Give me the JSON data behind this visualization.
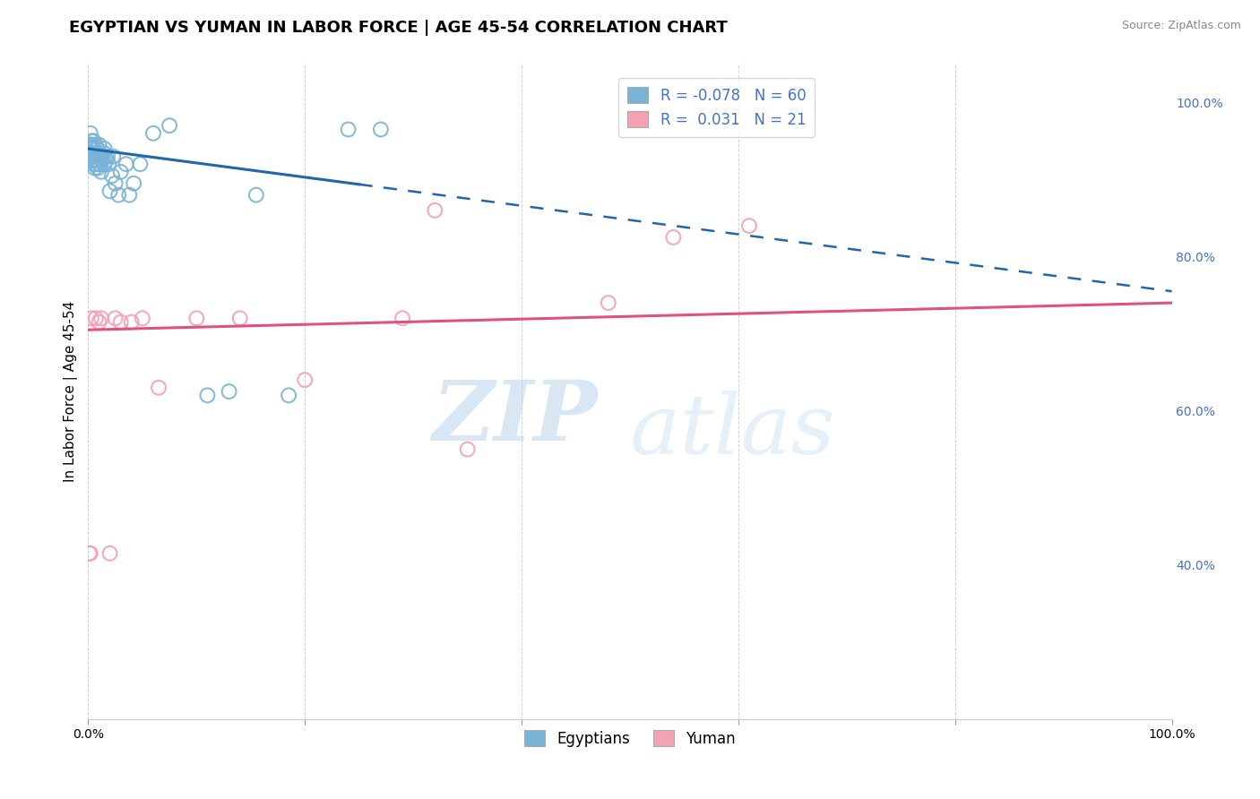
{
  "title": "EGYPTIAN VS YUMAN IN LABOR FORCE | AGE 45-54 CORRELATION CHART",
  "source_text": "Source: ZipAtlas.com",
  "ylabel": "In Labor Force | Age 45-54",
  "xlim": [
    0.0,
    1.0
  ],
  "ylim": [
    0.2,
    1.05
  ],
  "legend_blue_r": "-0.078",
  "legend_blue_n": "60",
  "legend_pink_r": "0.031",
  "legend_pink_n": "21",
  "blue_color": "#7ab3d8",
  "pink_color": "#f4a0b5",
  "trendline_blue_color": "#2166ac",
  "trendline_pink_color": "#e05080",
  "watermark_zip": "ZIP",
  "watermark_atlas": "atlas",
  "blue_scatter_x": [
    0.001,
    0.001,
    0.002,
    0.002,
    0.002,
    0.002,
    0.003,
    0.003,
    0.003,
    0.003,
    0.003,
    0.004,
    0.004,
    0.004,
    0.005,
    0.005,
    0.005,
    0.005,
    0.006,
    0.006,
    0.006,
    0.007,
    0.007,
    0.007,
    0.008,
    0.008,
    0.009,
    0.009,
    0.01,
    0.01,
    0.01,
    0.011,
    0.012,
    0.012,
    0.013,
    0.014,
    0.015,
    0.015,
    0.016,
    0.017,
    0.018,
    0.019,
    0.02,
    0.022,
    0.023,
    0.025,
    0.028,
    0.03,
    0.035,
    0.038,
    0.042,
    0.048,
    0.06,
    0.075,
    0.11,
    0.13,
    0.155,
    0.185,
    0.24,
    0.27
  ],
  "blue_scatter_y": [
    0.945,
    0.935,
    0.93,
    0.94,
    0.945,
    0.96,
    0.925,
    0.93,
    0.94,
    0.945,
    0.95,
    0.93,
    0.94,
    0.945,
    0.92,
    0.93,
    0.94,
    0.95,
    0.915,
    0.925,
    0.935,
    0.92,
    0.93,
    0.945,
    0.925,
    0.94,
    0.915,
    0.93,
    0.92,
    0.93,
    0.945,
    0.92,
    0.91,
    0.93,
    0.925,
    0.935,
    0.92,
    0.94,
    0.93,
    0.925,
    0.93,
    0.92,
    0.885,
    0.905,
    0.93,
    0.895,
    0.88,
    0.91,
    0.92,
    0.88,
    0.895,
    0.92,
    0.96,
    0.97,
    0.62,
    0.625,
    0.88,
    0.62,
    0.965,
    0.965
  ],
  "pink_scatter_x": [
    0.001,
    0.002,
    0.003,
    0.007,
    0.01,
    0.012,
    0.02,
    0.025,
    0.03,
    0.04,
    0.05,
    0.065,
    0.1,
    0.14,
    0.2,
    0.29,
    0.32,
    0.35,
    0.48,
    0.54,
    0.61
  ],
  "pink_scatter_y": [
    0.415,
    0.415,
    0.72,
    0.72,
    0.715,
    0.72,
    0.415,
    0.72,
    0.715,
    0.715,
    0.72,
    0.63,
    0.72,
    0.72,
    0.64,
    0.72,
    0.86,
    0.55,
    0.74,
    0.825,
    0.84
  ],
  "blue_trend_x0": 0.0,
  "blue_trend_x_split": 0.25,
  "blue_trend_x1": 1.0,
  "blue_trend_y0": 0.94,
  "blue_trend_y1": 0.755,
  "pink_trend_x0": 0.0,
  "pink_trend_x1": 1.0,
  "pink_trend_y0": 0.705,
  "pink_trend_y1": 0.74,
  "grid_color": "#cccccc",
  "background_color": "#ffffff",
  "title_fontsize": 13,
  "axis_label_fontsize": 11,
  "tick_fontsize": 10,
  "legend_fontsize": 12,
  "right_tick_color": "#4472c4",
  "yticks_right": [
    1.0,
    0.8,
    0.6,
    0.4
  ],
  "ytick_right_labels": [
    "100.0%",
    "80.0%",
    "60.0%",
    "40.0%"
  ]
}
